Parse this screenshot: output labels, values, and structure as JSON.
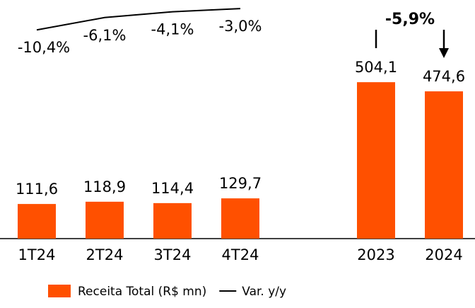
{
  "chart_data": {
    "type": "bar",
    "categories": [
      "1T24",
      "2T24",
      "3T24",
      "4T24",
      null,
      "2023",
      "2024"
    ],
    "series": [
      {
        "name": "Receita Total (R$ mn)",
        "color": "#ff5000",
        "values": [
          111.6,
          118.9,
          114.4,
          129.7,
          null,
          504.1,
          474.6
        ],
        "value_labels": [
          "111,6",
          "118,9",
          "114,4",
          "129,7",
          null,
          "504,1",
          "474,6"
        ]
      },
      {
        "name": "Var. y/y",
        "type": "line",
        "axis": "y2",
        "color": "#000000",
        "values": [
          -10.4,
          -6.1,
          -4.1,
          -3.0,
          null,
          null,
          null
        ],
        "value_labels": [
          "-10,4%",
          "-6,1%",
          "-4,1%",
          "-3,0%",
          null,
          null,
          null
        ]
      }
    ],
    "annotation": "-5,9%",
    "ylim": [
      0,
      769
    ],
    "y2lim": [
      -83,
      0
    ],
    "legend": "bottom"
  }
}
